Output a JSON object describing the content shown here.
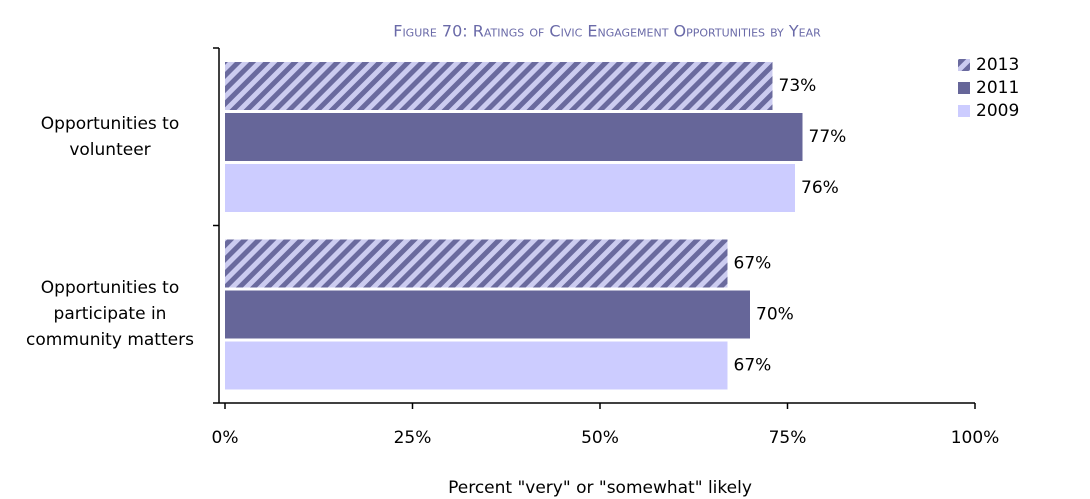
{
  "chart_data": {
    "type": "bar",
    "orientation": "horizontal",
    "title": "Figure 70: Ratings of Civic Engagement Opportunities by Year",
    "x_label": "Percent \"very\" or \"somewhat\" likely",
    "categories": [
      "Opportunities to volunteer",
      "Opportunities to participate in community matters"
    ],
    "series": [
      {
        "name": "2013",
        "color": "#6a6a9e",
        "hatch": true,
        "values": [
          73,
          67
        ],
        "value_labels": [
          "73%",
          "67%"
        ]
      },
      {
        "name": "2011",
        "color": "#666699",
        "values": [
          77,
          70
        ],
        "value_labels": [
          "77%",
          "70%"
        ]
      },
      {
        "name": "2009",
        "color": "#ccccff",
        "values": [
          76,
          67
        ],
        "value_labels": [
          "76%",
          "67%"
        ]
      }
    ],
    "xlim": [
      0,
      100
    ],
    "xticks": [
      {
        "value": 0,
        "label": "0%"
      },
      {
        "value": 25,
        "label": "25%"
      },
      {
        "value": 50,
        "label": "50%"
      },
      {
        "value": 75,
        "label": "75%"
      },
      {
        "value": 100,
        "label": "100%"
      }
    ],
    "legend": "top-right"
  }
}
